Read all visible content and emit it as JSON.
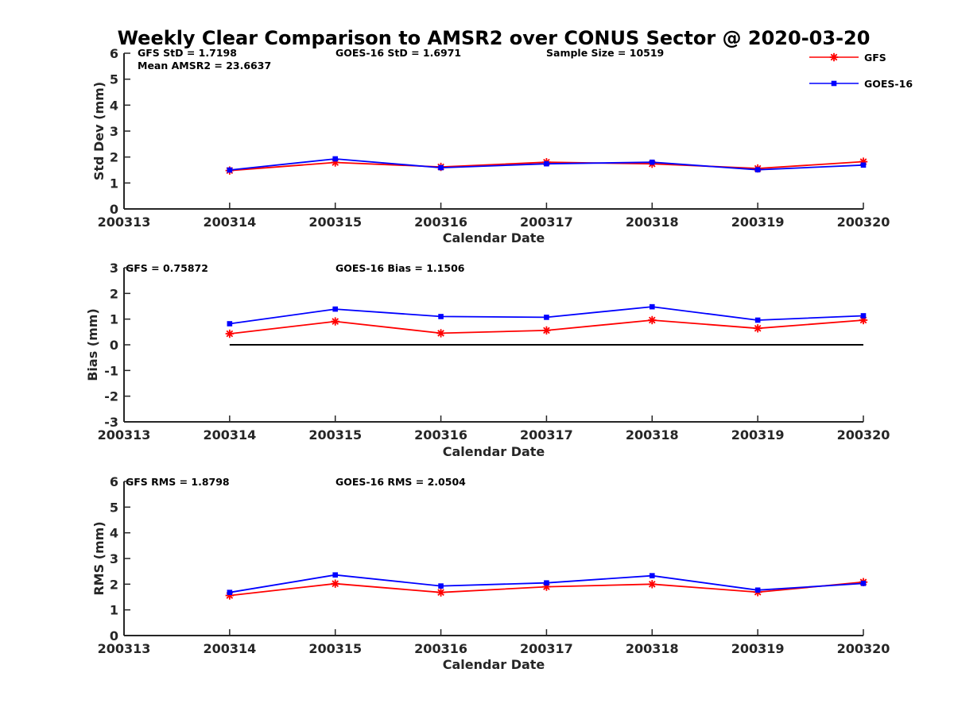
{
  "figure": {
    "title": "Weekly Clear Comparison to AMSR2 over CONUS Sector @ 2020-03-20"
  },
  "legend": {
    "entries": [
      {
        "label": "GFS",
        "color": "#ff0000",
        "marker": "asterisk"
      },
      {
        "label": "GOES-16",
        "color": "#0000ff",
        "marker": "square"
      }
    ]
  },
  "chart_data": [
    {
      "type": "line",
      "ylabel": "Std Dev (mm)",
      "xlabel": "Calendar Date",
      "x_ticks": [
        "200313",
        "200314",
        "200315",
        "200316",
        "200317",
        "200318",
        "200319",
        "200320"
      ],
      "ylim": [
        0,
        6
      ],
      "y_ticks": [
        "0",
        "1",
        "2",
        "3",
        "4",
        "5",
        "6"
      ],
      "stats": [
        {
          "text": "GFS StD = 1.7198"
        },
        {
          "text": "Mean AMSR2 = 23.6637"
        },
        {
          "text": "GOES-16 StD = 1.6971"
        },
        {
          "text": "Sample Size = 10519"
        }
      ],
      "series": [
        {
          "name": "GFS",
          "color": "#ff0000",
          "marker": "asterisk",
          "x": [
            "200314",
            "200315",
            "200316",
            "200317",
            "200318",
            "200319",
            "200320"
          ],
          "values": [
            1.48,
            1.79,
            1.62,
            1.8,
            1.74,
            1.56,
            1.82
          ]
        },
        {
          "name": "GOES-16",
          "color": "#0000ff",
          "marker": "square",
          "x": [
            "200314",
            "200315",
            "200316",
            "200317",
            "200318",
            "200319",
            "200320"
          ],
          "values": [
            1.5,
            1.93,
            1.59,
            1.74,
            1.8,
            1.51,
            1.69
          ]
        }
      ],
      "grid": false
    },
    {
      "type": "line",
      "ylabel": "Bias (mm)",
      "xlabel": "Calendar Date",
      "x_ticks": [
        "200313",
        "200314",
        "200315",
        "200316",
        "200317",
        "200318",
        "200319",
        "200320"
      ],
      "ylim": [
        -3,
        3
      ],
      "y_ticks": [
        "-3",
        "-2",
        "-1",
        "0",
        "1",
        "2",
        "3"
      ],
      "stats": [
        {
          "text": "GFS = 0.75872"
        },
        {
          "text": "GOES-16 Bias  = 1.1506"
        }
      ],
      "reference_line": {
        "y": 0,
        "x_from": "200314",
        "x_to": "200320",
        "color": "#000000"
      },
      "series": [
        {
          "name": "GFS",
          "color": "#ff0000",
          "marker": "asterisk",
          "x": [
            "200314",
            "200315",
            "200316",
            "200317",
            "200318",
            "200319",
            "200320"
          ],
          "values": [
            0.43,
            0.91,
            0.45,
            0.56,
            0.96,
            0.64,
            0.96
          ]
        },
        {
          "name": "GOES-16",
          "color": "#0000ff",
          "marker": "square",
          "x": [
            "200314",
            "200315",
            "200316",
            "200317",
            "200318",
            "200319",
            "200320"
          ],
          "values": [
            0.82,
            1.39,
            1.1,
            1.07,
            1.48,
            0.96,
            1.13
          ]
        }
      ],
      "grid": false
    },
    {
      "type": "line",
      "ylabel": "RMS (mm)",
      "xlabel": "Calendar Date",
      "x_ticks": [
        "200313",
        "200314",
        "200315",
        "200316",
        "200317",
        "200318",
        "200319",
        "200320"
      ],
      "ylim": [
        0,
        6
      ],
      "y_ticks": [
        "0",
        "1",
        "2",
        "3",
        "4",
        "5",
        "6"
      ],
      "stats": [
        {
          "text": "GFS RMS = 1.8798"
        },
        {
          "text": "GOES-16 RMS = 2.0504"
        }
      ],
      "series": [
        {
          "name": "GFS",
          "color": "#ff0000",
          "marker": "asterisk",
          "x": [
            "200314",
            "200315",
            "200316",
            "200317",
            "200318",
            "200319",
            "200320"
          ],
          "values": [
            1.56,
            2.02,
            1.68,
            1.9,
            2.0,
            1.69,
            2.08
          ]
        },
        {
          "name": "GOES-16",
          "color": "#0000ff",
          "marker": "square",
          "x": [
            "200314",
            "200315",
            "200316",
            "200317",
            "200318",
            "200319",
            "200320"
          ],
          "values": [
            1.68,
            2.36,
            1.93,
            2.05,
            2.33,
            1.77,
            2.03
          ]
        }
      ],
      "grid": false
    }
  ]
}
